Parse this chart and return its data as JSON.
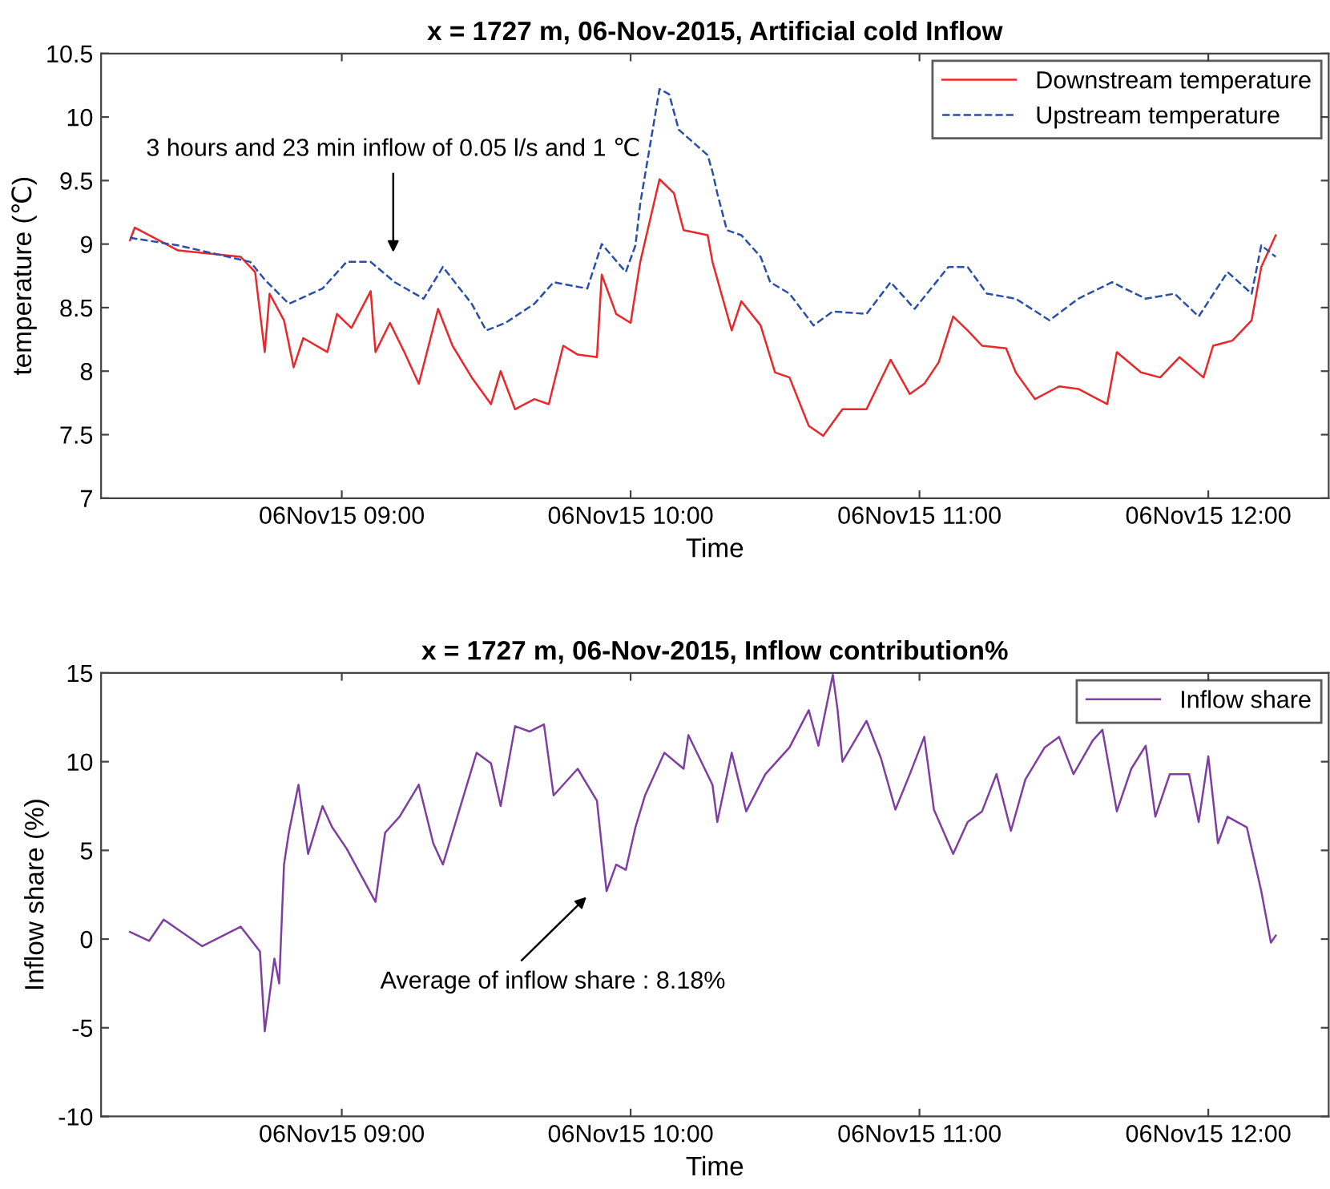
{
  "chart_data": [
    {
      "type": "line",
      "title": "x = 1727 m, 06-Nov-2015, Artificial cold Inflow",
      "xlabel": "Time",
      "ylabel": "temperature (℃)",
      "xlim": [
        "2015-11-06T08:10",
        "2015-11-06T12:25"
      ],
      "xticks": [
        {
          "value": "2015-11-06T09:00",
          "label": "06Nov15 09:00"
        },
        {
          "value": "2015-11-06T10:00",
          "label": "06Nov15 10:00"
        },
        {
          "value": "2015-11-06T11:00",
          "label": "06Nov15 11:00"
        },
        {
          "value": "2015-11-06T12:00",
          "label": "06Nov15 12:00"
        }
      ],
      "ylim": [
        7,
        10.5
      ],
      "yticks": [
        7,
        7.5,
        8,
        8.5,
        9,
        9.5,
        10,
        10.5
      ],
      "grid": false,
      "legend": "top right",
      "marker": "none",
      "annotations": [
        "3 hours and 23 min inflow of 0.05 l/s and 1 ℃"
      ],
      "series": [
        {
          "name": "Downstream temperature",
          "color": "#e8282b",
          "line_style": "solid",
          "x": [
            "2015-11-06T08:16",
            "2015-11-06T08:17",
            "2015-11-06T08:26",
            "2015-11-06T08:39",
            "2015-11-06T08:42",
            "2015-11-06T08:44",
            "2015-11-06T08:45",
            "2015-11-06T08:48",
            "2015-11-06T08:50",
            "2015-11-06T08:52",
            "2015-11-06T08:57",
            "2015-11-06T08:59",
            "2015-11-06T09:02",
            "2015-11-06T09:06",
            "2015-11-06T09:07",
            "2015-11-06T09:10",
            "2015-11-06T09:13",
            "2015-11-06T09:16",
            "2015-11-06T09:20",
            "2015-11-06T09:23",
            "2015-11-06T09:27",
            "2015-11-06T09:31",
            "2015-11-06T09:33",
            "2015-11-06T09:36",
            "2015-11-06T09:40",
            "2015-11-06T09:43",
            "2015-11-06T09:46",
            "2015-11-06T09:49",
            "2015-11-06T09:53",
            "2015-11-06T09:54",
            "2015-11-06T09:57",
            "2015-11-06T10:00",
            "2015-11-06T10:02",
            "2015-11-06T10:06",
            "2015-11-06T10:09",
            "2015-11-06T10:11",
            "2015-11-06T10:16",
            "2015-11-06T10:17",
            "2015-11-06T10:21",
            "2015-11-06T10:23",
            "2015-11-06T10:27",
            "2015-11-06T10:30",
            "2015-11-06T10:33",
            "2015-11-06T10:37",
            "2015-11-06T10:40",
            "2015-11-06T10:44",
            "2015-11-06T10:49",
            "2015-11-06T10:54",
            "2015-11-06T10:58",
            "2015-11-06T11:01",
            "2015-11-06T11:04",
            "2015-11-06T11:07",
            "2015-11-06T11:10",
            "2015-11-06T11:13",
            "2015-11-06T11:18",
            "2015-11-06T11:20",
            "2015-11-06T11:24",
            "2015-11-06T11:29",
            "2015-11-06T11:33",
            "2015-11-06T11:39",
            "2015-11-06T11:41",
            "2015-11-06T11:46",
            "2015-11-06T11:50",
            "2015-11-06T11:54",
            "2015-11-06T11:59",
            "2015-11-06T12:01",
            "2015-11-06T12:05",
            "2015-11-06T12:09",
            "2015-11-06T12:11",
            "2015-11-06T12:14"
          ],
          "values": [
            9.03,
            9.13,
            8.95,
            8.9,
            8.78,
            8.15,
            8.61,
            8.4,
            8.03,
            8.26,
            8.15,
            8.45,
            8.34,
            8.63,
            8.15,
            8.38,
            8.15,
            7.9,
            8.49,
            8.2,
            7.95,
            7.74,
            8.0,
            7.7,
            7.78,
            7.74,
            8.2,
            8.13,
            8.11,
            8.76,
            8.45,
            8.38,
            8.86,
            9.51,
            9.4,
            9.11,
            9.07,
            8.86,
            8.32,
            8.55,
            8.36,
            7.99,
            7.95,
            7.57,
            7.49,
            7.7,
            7.7,
            8.09,
            7.82,
            7.9,
            8.07,
            8.43,
            8.32,
            8.2,
            8.18,
            7.99,
            7.78,
            7.88,
            7.86,
            7.74,
            8.15,
            7.99,
            7.95,
            8.11,
            7.95,
            8.2,
            8.24,
            8.4,
            8.82,
            9.07
          ]
        },
        {
          "name": "Upstream temperature",
          "color": "#2a4fa8",
          "line_style": "dashed",
          "x": [
            "2015-11-06T08:16",
            "2015-11-06T08:26",
            "2015-11-06T08:41",
            "2015-11-06T08:44",
            "2015-11-06T08:49",
            "2015-11-06T08:56",
            "2015-11-06T09:01",
            "2015-11-06T09:06",
            "2015-11-06T09:11",
            "2015-11-06T09:17",
            "2015-11-06T09:21",
            "2015-11-06T09:27",
            "2015-11-06T09:30",
            "2015-11-06T09:34",
            "2015-11-06T09:40",
            "2015-11-06T09:44",
            "2015-11-06T09:51",
            "2015-11-06T09:54",
            "2015-11-06T09:59",
            "2015-11-06T10:01",
            "2015-11-06T10:02",
            "2015-11-06T10:06",
            "2015-11-06T10:08",
            "2015-11-06T10:10",
            "2015-11-06T10:16",
            "2015-11-06T10:17",
            "2015-11-06T10:18",
            "2015-11-06T10:20",
            "2015-11-06T10:23",
            "2015-11-06T10:27",
            "2015-11-06T10:29",
            "2015-11-06T10:33",
            "2015-11-06T10:38",
            "2015-11-06T10:42",
            "2015-11-06T10:49",
            "2015-11-06T10:54",
            "2015-11-06T10:59",
            "2015-11-06T11:06",
            "2015-11-06T11:10",
            "2015-11-06T11:14",
            "2015-11-06T11:20",
            "2015-11-06T11:27",
            "2015-11-06T11:33",
            "2015-11-06T11:40",
            "2015-11-06T11:47",
            "2015-11-06T11:53",
            "2015-11-06T11:58",
            "2015-11-06T12:04",
            "2015-11-06T12:09",
            "2015-11-06T12:11",
            "2015-11-06T12:14"
          ],
          "values": [
            9.05,
            8.99,
            8.86,
            8.72,
            8.53,
            8.65,
            8.86,
            8.86,
            8.7,
            8.57,
            8.82,
            8.53,
            8.32,
            8.38,
            8.53,
            8.7,
            8.65,
            9.0,
            8.78,
            8.99,
            9.32,
            10.22,
            10.18,
            9.9,
            9.7,
            9.57,
            9.4,
            9.11,
            9.07,
            8.9,
            8.7,
            8.61,
            8.36,
            8.47,
            8.45,
            8.7,
            8.49,
            8.82,
            8.82,
            8.61,
            8.57,
            8.4,
            8.57,
            8.7,
            8.57,
            8.61,
            8.43,
            8.78,
            8.61,
            8.99,
            8.9
          ]
        }
      ]
    },
    {
      "type": "line",
      "title": "x = 1727 m, 06-Nov-2015, Inflow contribution%",
      "xlabel": "Time",
      "ylabel": "Inflow share (%)",
      "xlim": [
        "2015-11-06T08:10",
        "2015-11-06T12:25"
      ],
      "xticks": [
        {
          "value": "2015-11-06T09:00",
          "label": "06Nov15 09:00"
        },
        {
          "value": "2015-11-06T10:00",
          "label": "06Nov15 10:00"
        },
        {
          "value": "2015-11-06T11:00",
          "label": "06Nov15 11:00"
        },
        {
          "value": "2015-11-06T12:00",
          "label": "06Nov15 12:00"
        }
      ],
      "ylim": [
        -10,
        15
      ],
      "yticks": [
        -10,
        -5,
        0,
        5,
        10,
        15
      ],
      "grid": false,
      "legend": "top right",
      "marker": "none",
      "annotations": [
        "Average of inflow share : 8.18%"
      ],
      "series": [
        {
          "name": "Inflow share",
          "color": "#7e3fa0",
          "line_style": "solid",
          "x": [
            "2015-11-06T08:16",
            "2015-11-06T08:20",
            "2015-11-06T08:23",
            "2015-11-06T08:31",
            "2015-11-06T08:39",
            "2015-11-06T08:43",
            "2015-11-06T08:44",
            "2015-11-06T08:46",
            "2015-11-06T08:47",
            "2015-11-06T08:48",
            "2015-11-06T08:49",
            "2015-11-06T08:51",
            "2015-11-06T08:53",
            "2015-11-06T08:56",
            "2015-11-06T08:58",
            "2015-11-06T09:01",
            "2015-11-06T09:04",
            "2015-11-06T09:07",
            "2015-11-06T09:09",
            "2015-11-06T09:12",
            "2015-11-06T09:16",
            "2015-11-06T09:19",
            "2015-11-06T09:21",
            "2015-11-06T09:24",
            "2015-11-06T09:28",
            "2015-11-06T09:31",
            "2015-11-06T09:33",
            "2015-11-06T09:36",
            "2015-11-06T09:39",
            "2015-11-06T09:42",
            "2015-11-06T09:44",
            "2015-11-06T09:49",
            "2015-11-06T09:53",
            "2015-11-06T09:55",
            "2015-11-06T09:57",
            "2015-11-06T09:59",
            "2015-11-06T10:01",
            "2015-11-06T10:03",
            "2015-11-06T10:07",
            "2015-11-06T10:11",
            "2015-11-06T10:12",
            "2015-11-06T10:17",
            "2015-11-06T10:18",
            "2015-11-06T10:21",
            "2015-11-06T10:24",
            "2015-11-06T10:28",
            "2015-11-06T10:33",
            "2015-11-06T10:37",
            "2015-11-06T10:39",
            "2015-11-06T10:42",
            "2015-11-06T10:43",
            "2015-11-06T10:44",
            "2015-11-06T10:49",
            "2015-11-06T10:52",
            "2015-11-06T10:55",
            "2015-11-06T10:58",
            "2015-11-06T11:01",
            "2015-11-06T11:03",
            "2015-11-06T11:07",
            "2015-11-06T11:10",
            "2015-11-06T11:13",
            "2015-11-06T11:16",
            "2015-11-06T11:19",
            "2015-11-06T11:22",
            "2015-11-06T11:26",
            "2015-11-06T11:29",
            "2015-11-06T11:32",
            "2015-11-06T11:36",
            "2015-11-06T11:38",
            "2015-11-06T11:41",
            "2015-11-06T11:44",
            "2015-11-06T11:47",
            "2015-11-06T11:49",
            "2015-11-06T11:52",
            "2015-11-06T11:56",
            "2015-11-06T11:58",
            "2015-11-06T12:00",
            "2015-11-06T12:02",
            "2015-11-06T12:04",
            "2015-11-06T12:08",
            "2015-11-06T12:09",
            "2015-11-06T12:11",
            "2015-11-06T12:13",
            "2015-11-06T12:14"
          ],
          "values": [
            0.4,
            -0.1,
            1.1,
            -0.4,
            0.7,
            -0.7,
            -5.2,
            -1.1,
            -2.5,
            4.2,
            6.0,
            8.7,
            4.8,
            7.5,
            6.3,
            5.1,
            3.6,
            2.1,
            6.0,
            6.9,
            8.7,
            5.4,
            4.2,
            6.9,
            10.5,
            9.9,
            7.5,
            12.0,
            11.7,
            12.1,
            8.1,
            9.6,
            7.8,
            2.7,
            4.2,
            3.9,
            6.3,
            8.1,
            10.5,
            9.6,
            11.5,
            8.7,
            6.6,
            10.5,
            7.2,
            9.3,
            10.8,
            12.9,
            10.9,
            14.9,
            12.9,
            10.0,
            12.3,
            10.2,
            7.3,
            9.3,
            11.4,
            7.3,
            4.8,
            6.6,
            7.2,
            9.3,
            6.1,
            9.0,
            10.8,
            11.4,
            9.3,
            11.2,
            11.8,
            7.2,
            9.6,
            10.9,
            6.9,
            9.3,
            9.3,
            6.6,
            10.3,
            5.4,
            6.9,
            6.3,
            5.1,
            2.7,
            -0.2,
            0.2
          ]
        }
      ]
    }
  ]
}
